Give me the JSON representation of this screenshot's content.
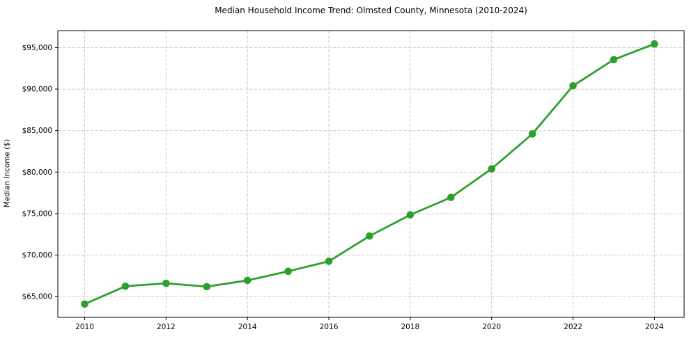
{
  "chart_data": {
    "type": "line",
    "title": "Median Household Income Trend: Olmsted County, Minnesota (2010-2024)",
    "xlabel": "",
    "ylabel": "Median Income ($)",
    "x": [
      2010,
      2011,
      2012,
      2013,
      2014,
      2015,
      2016,
      2017,
      2018,
      2019,
      2020,
      2021,
      2022,
      2023,
      2024
    ],
    "series": [
      {
        "name": "Median household income",
        "values": [
          64100,
          66250,
          66600,
          66200,
          66950,
          68050,
          69250,
          72300,
          74850,
          76950,
          80400,
          84600,
          90400,
          93550,
          95450
        ]
      }
    ],
    "x_ticks": [
      2010,
      2012,
      2014,
      2016,
      2018,
      2020,
      2022,
      2024
    ],
    "x_tick_labels": [
      "2010",
      "2012",
      "2014",
      "2016",
      "2018",
      "2020",
      "2022",
      "2024"
    ],
    "y_ticks": [
      65000,
      70000,
      75000,
      80000,
      85000,
      90000,
      95000
    ],
    "y_tick_labels": [
      "$65,000",
      "$70,000",
      "$75,000",
      "$80,000",
      "$85,000",
      "$90,000",
      "$95,000"
    ],
    "xlim": [
      2009.34,
      2024.73
    ],
    "ylim": [
      62500,
      97050
    ],
    "grid": true,
    "grid_style": "dashed",
    "legend": "none",
    "line_color": "#2ca02c",
    "grid_color": "#cccccc",
    "spine_color": "#000000",
    "marker": "circle"
  }
}
